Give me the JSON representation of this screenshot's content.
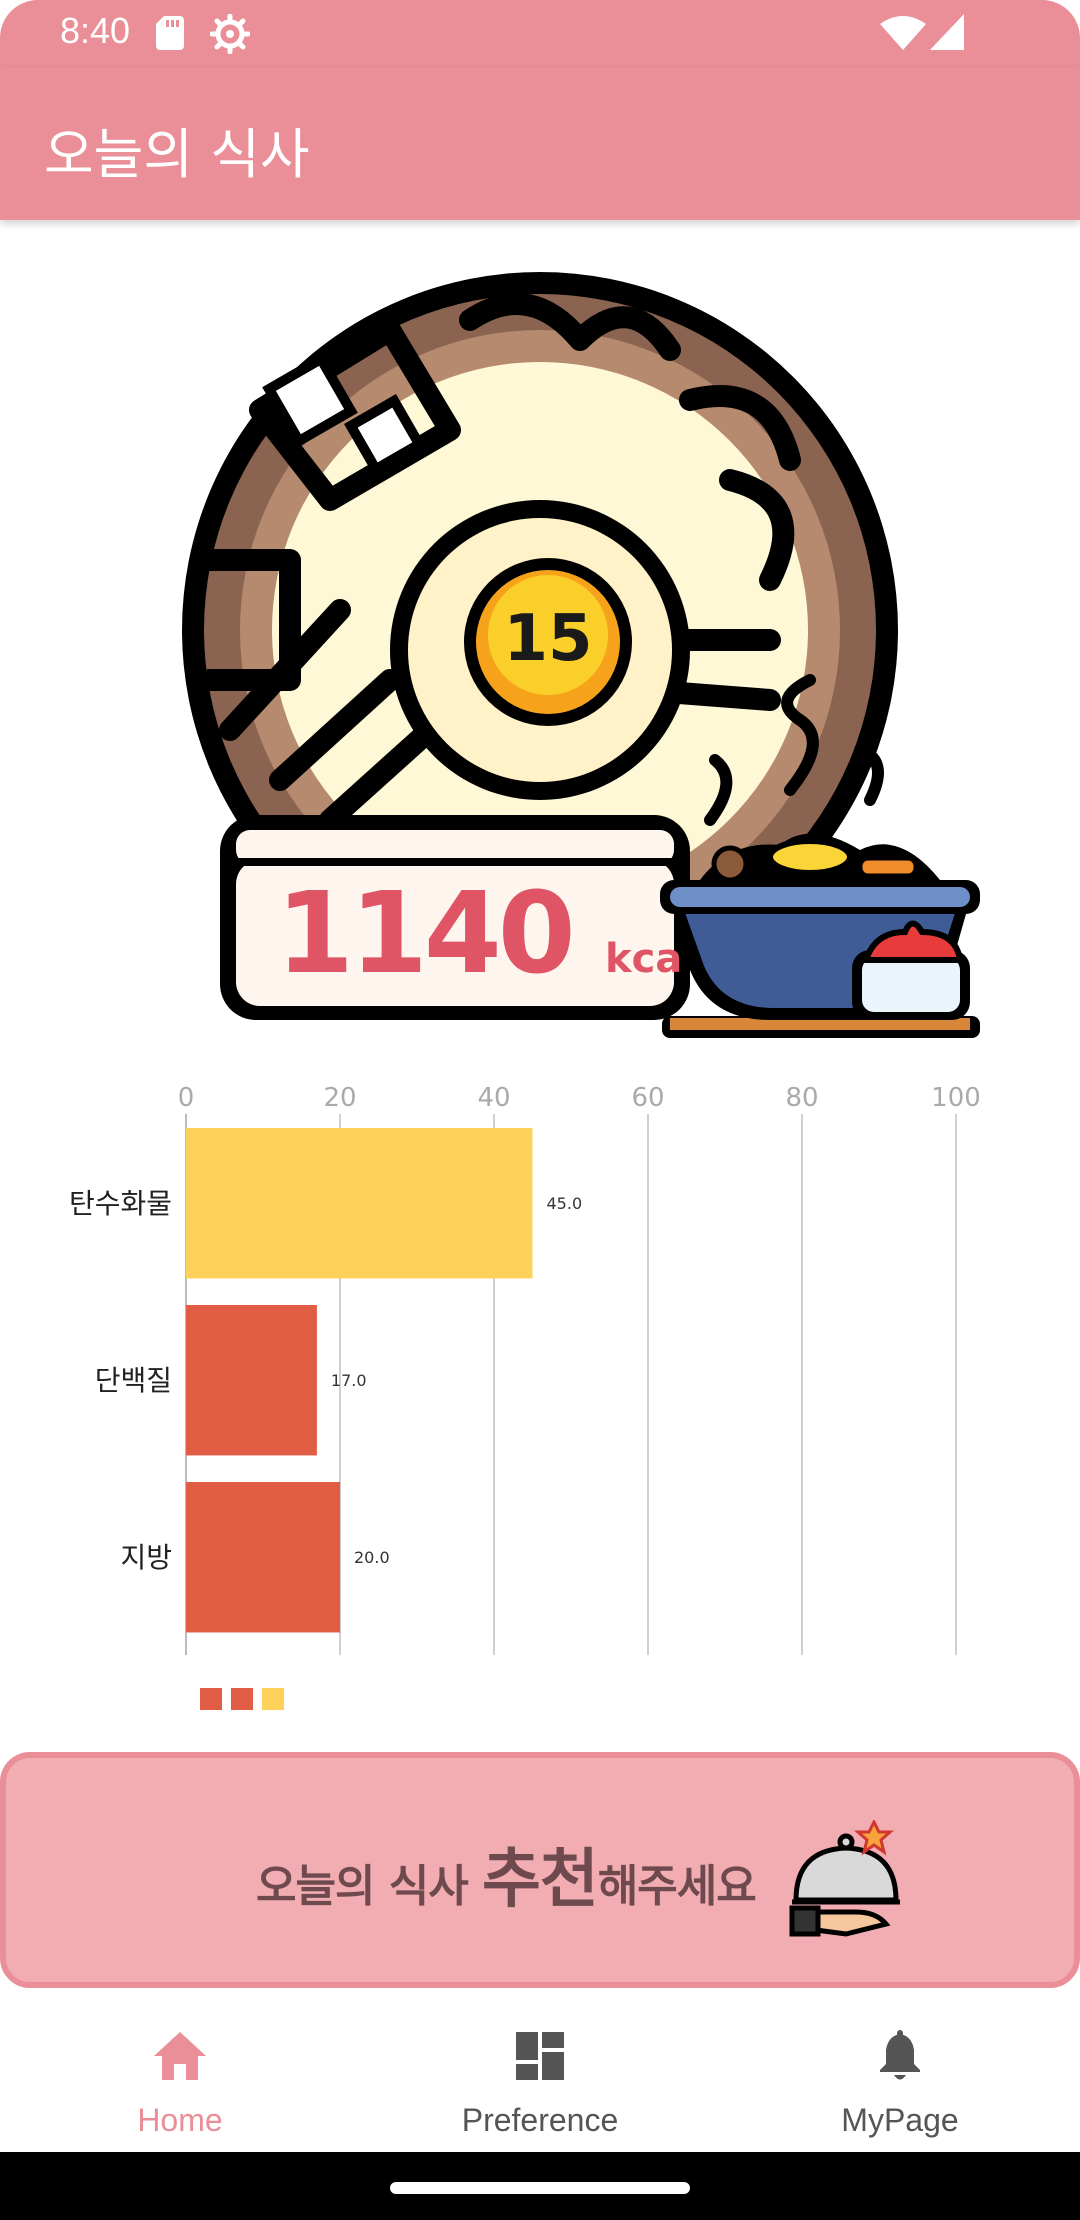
{
  "status_bar": {
    "time": "8:40",
    "icons": [
      "sd-card-icon",
      "gear-icon",
      "wifi-icon",
      "signal-icon"
    ]
  },
  "app_bar": {
    "title": "오늘의 식사"
  },
  "hero": {
    "badge_number": "15",
    "calories_value": "1140",
    "calories_unit": "kca"
  },
  "chart_data": {
    "type": "bar",
    "orientation": "horizontal",
    "categories": [
      "탄수화물",
      "단백질",
      "지방"
    ],
    "values": [
      45.0,
      17.0,
      20.0
    ],
    "value_labels": [
      "45.0",
      "17.0",
      "20.0"
    ],
    "colors": [
      "#fdd05a",
      "#e05d44",
      "#e05d44"
    ],
    "xlim": [
      0,
      100
    ],
    "x_ticks": [
      "0",
      "20",
      "40",
      "60",
      "80",
      "100"
    ],
    "grid": true,
    "legend": {
      "placement": "bottom-left",
      "swatches": [
        "#e05d44",
        "#e05d44",
        "#fdd05a"
      ]
    }
  },
  "banner": {
    "text_before": "오늘의 식사 ",
    "text_big": "추천",
    "text_after": "해주세요",
    "icon": "serving-cloche-icon"
  },
  "bottom_nav": {
    "items": [
      {
        "label": "Home",
        "icon": "home-icon",
        "active": true
      },
      {
        "label": "Preference",
        "icon": "dashboard-icon",
        "active": false
      },
      {
        "label": "MyPage",
        "icon": "bell-icon",
        "active": false
      }
    ]
  },
  "colors": {
    "primary": "#ea8f97",
    "banner_bg": "#f2adb3",
    "carb_bar": "#fdd05a",
    "protein_fat_bar": "#e05d44",
    "calorie_text": "#e05566"
  }
}
